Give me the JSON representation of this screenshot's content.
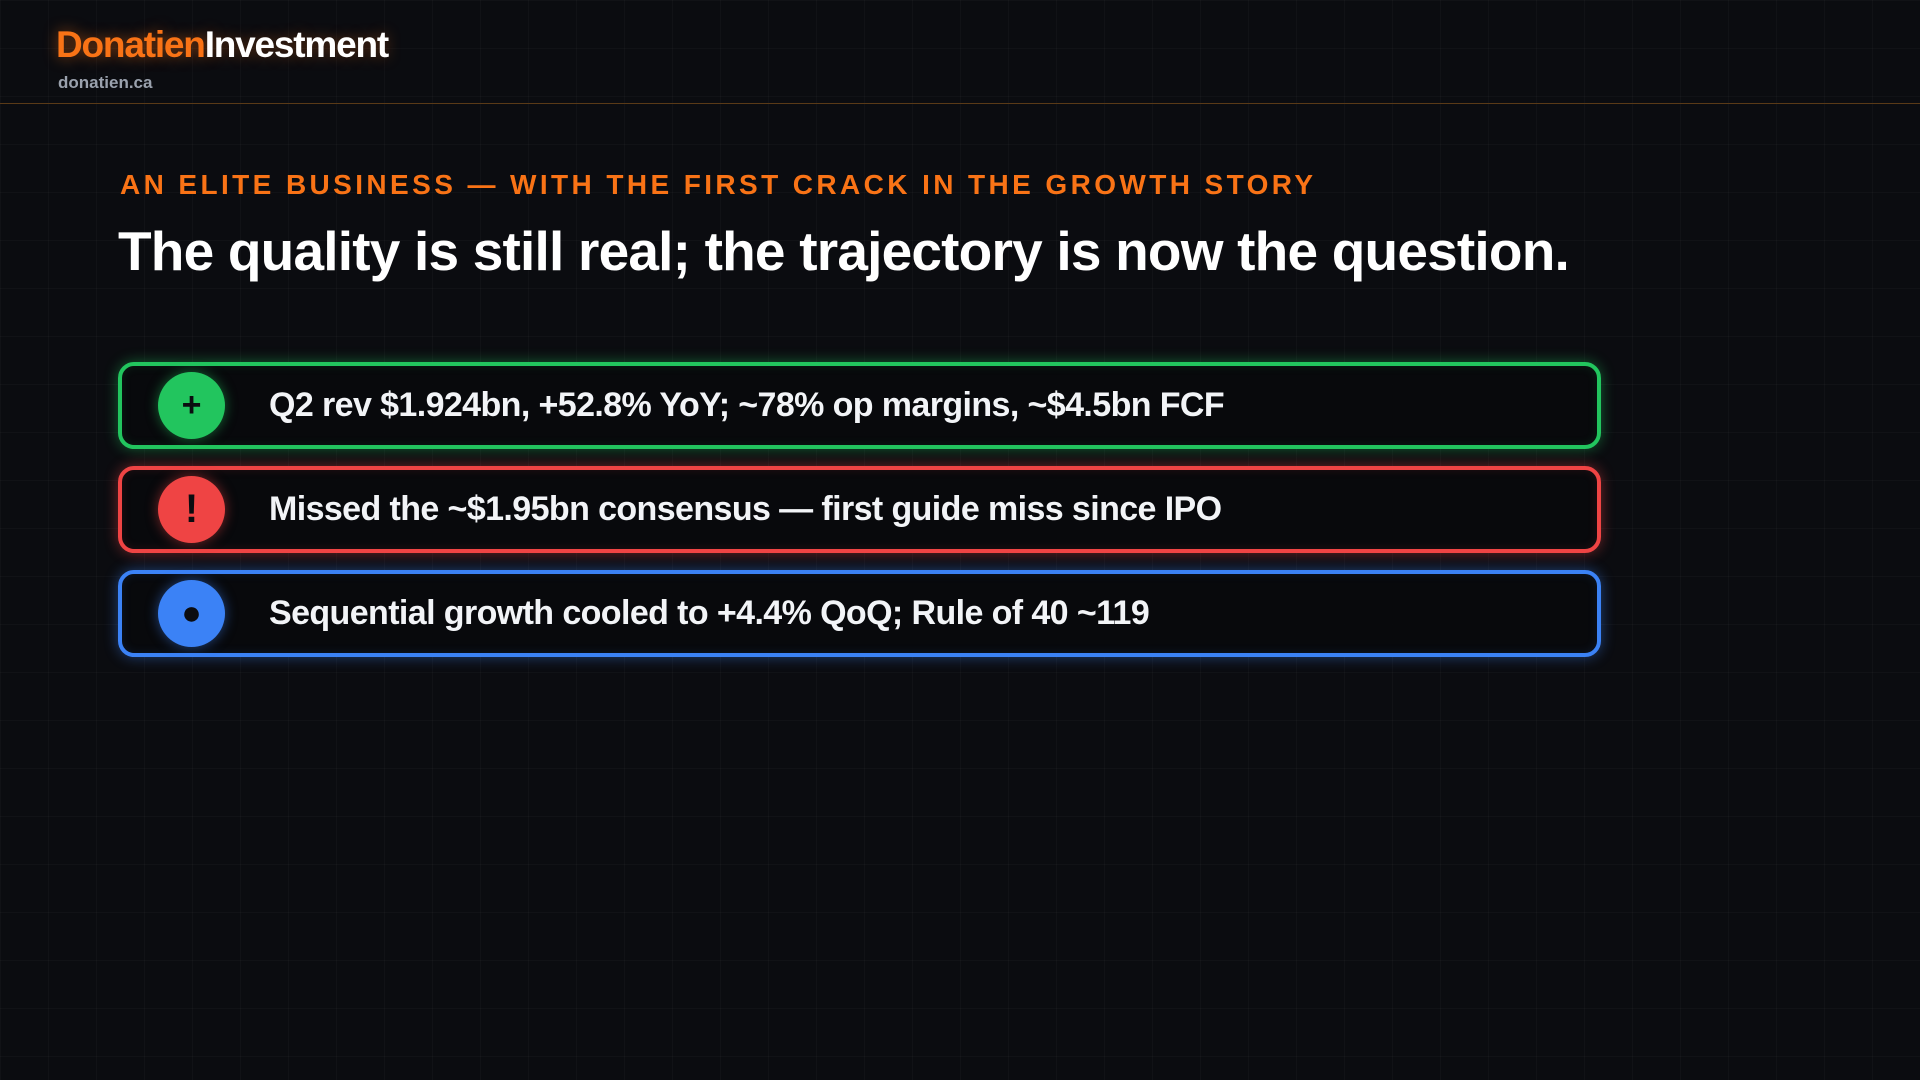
{
  "header": {
    "brand_primary": "Donatien",
    "brand_secondary": "Investment",
    "site": "donatien.ca"
  },
  "slide": {
    "kicker": "AN ELITE BUSINESS — WITH THE FIRST CRACK IN THE GROWTH STORY",
    "headline": "The quality is still real; the trajectory is now the question."
  },
  "cards": [
    {
      "icon": "plus-icon",
      "symbol": "+",
      "color": "#22c55e",
      "text": "Q2 rev $1.924bn, +52.8% YoY; ~78% op margins, ~$4.5bn FCF"
    },
    {
      "icon": "exclamation-icon",
      "symbol": "!",
      "color": "#ef4444",
      "text": "Missed the ~$1.95bn consensus — first guide miss since IPO"
    },
    {
      "icon": "dot-icon",
      "symbol": "●",
      "color": "#3b82f6",
      "text": "Sequential growth cooled to +4.4% QoQ; Rule of 40 ~119"
    }
  ],
  "colors": {
    "accent": "#f97316",
    "background": "#0b0c10"
  }
}
